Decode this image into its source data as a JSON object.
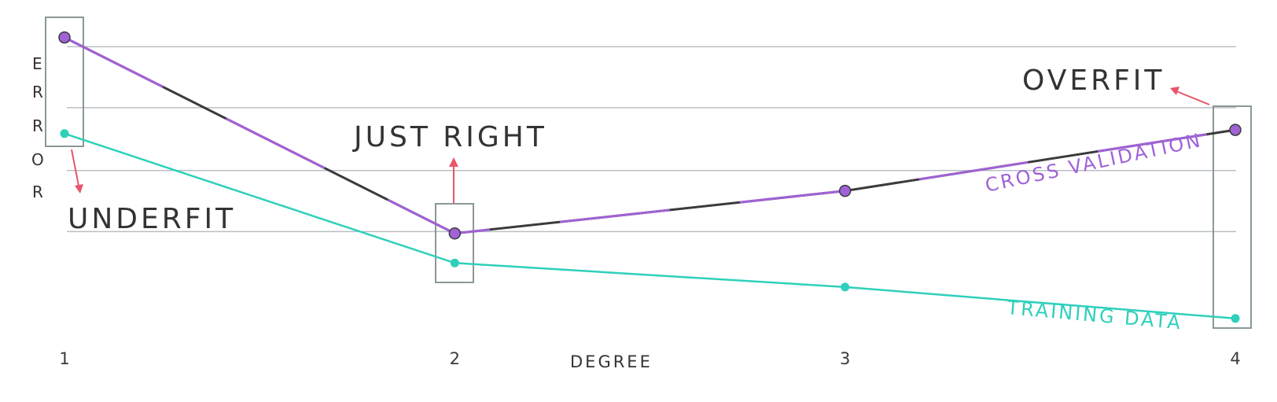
{
  "colors": {
    "cross_validation": "#a062d6",
    "cross_validation_dark": "#3b3b3b",
    "training": "#2fd0bb",
    "grid": "#b9bfc5",
    "annotation_arrow": "#e8556a",
    "box": "#7f8c8d"
  },
  "chart_data": {
    "type": "line",
    "x": [
      1,
      2,
      3,
      4
    ],
    "xlabel": "DEGREE",
    "ylabel": "ERROR",
    "ylabel_letters": [
      "E",
      "R",
      "R",
      "O",
      "R"
    ],
    "x_tick_labels": [
      "1",
      "2",
      "3",
      "4"
    ],
    "ylim": [
      0,
      10
    ],
    "grid": "horizontal",
    "series": [
      {
        "name": "CROSS VALIDATION",
        "key": "cv",
        "values": [
          9.2,
          3.9,
          5.05,
          6.7
        ]
      },
      {
        "name": "TRAINING DATA",
        "key": "train",
        "values": [
          6.6,
          3.1,
          2.45,
          1.6
        ]
      }
    ],
    "annotations": [
      {
        "text": "UNDERFIT",
        "at_x": 1
      },
      {
        "text": "JUST RIGHT",
        "at_x": 2
      },
      {
        "text": "OVERFIT",
        "at_x": 4
      }
    ]
  }
}
